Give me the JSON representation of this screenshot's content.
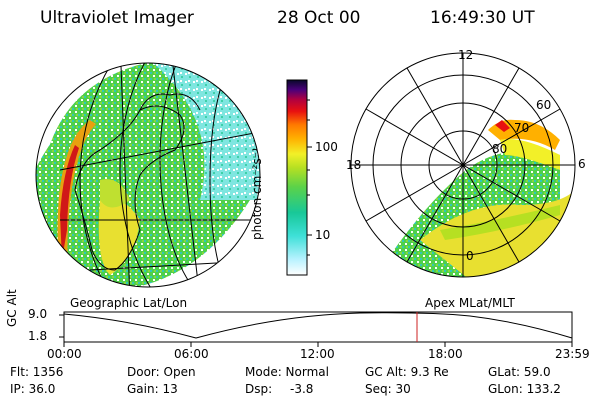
{
  "header": {
    "title": "Ultraviolet Imager",
    "date": "28 Oct 00",
    "time": "16:49:30 UT"
  },
  "colorbar": {
    "label": "photon cm⁻²s⁻¹",
    "ticks": [
      "100",
      "10"
    ],
    "scale": "log",
    "colors": [
      "#ffffff",
      "#b8f2ff",
      "#3ee0d8",
      "#18c898",
      "#5ad24a",
      "#b6e022",
      "#f2f028",
      "#ffb000",
      "#ff7a00",
      "#e81010",
      "#b00040",
      "#4a007a",
      "#08082a"
    ]
  },
  "left_panel": {
    "caption": "Geographic Lat/Lon"
  },
  "right_panel": {
    "caption": "Apex MLat/MLT",
    "mlt_labels": {
      "top": "12",
      "left": "18",
      "right": "6",
      "bottom": "0"
    },
    "lat_labels": [
      "60",
      "70",
      "80"
    ]
  },
  "timeline": {
    "y_axis_label": "GC Alt",
    "y_ticks": [
      "9.0",
      "1.8"
    ],
    "x_ticks": [
      "00:00",
      "06:00",
      "12:00",
      "18:00",
      "23:59"
    ],
    "marker_time": "16:49",
    "marker_color": "#cc2222"
  },
  "status": {
    "flt": "Flt: 1356",
    "ip": "IP: 36.0",
    "door": "Door: Open",
    "gain": "Gain: 13",
    "mode": "Mode: Normal",
    "dsp_label": "Dsp:",
    "dsp_value": "-3.8",
    "gc_alt": "GC Alt: 9.3 Re",
    "seq": "Seq: 30",
    "glat": "GLat:  59.0",
    "glon": "GLon: 133.2"
  }
}
